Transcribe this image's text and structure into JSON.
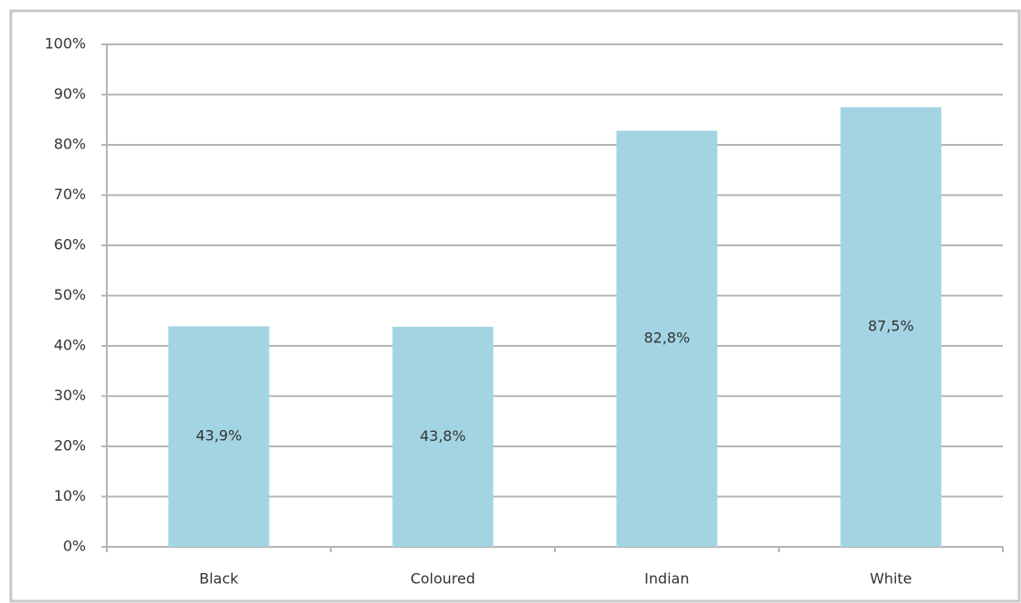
{
  "chart_data": {
    "type": "bar",
    "categories": [
      "Black",
      "Coloured",
      "Indian",
      "White"
    ],
    "values": [
      43.9,
      43.8,
      82.8,
      87.5
    ],
    "value_labels": [
      "43,9%",
      "43,8%",
      "82,8%",
      "87,5%"
    ],
    "color": "#a3d4e3",
    "ylim": [
      0,
      100
    ],
    "yticks": [
      {
        "value": 0,
        "label": "0%"
      },
      {
        "value": 10,
        "label": "10%"
      },
      {
        "value": 20,
        "label": "20%"
      },
      {
        "value": 30,
        "label": "30%"
      },
      {
        "value": 40,
        "label": "40%"
      },
      {
        "value": 50,
        "label": "50%"
      },
      {
        "value": 60,
        "label": "60%"
      },
      {
        "value": 70,
        "label": "70%"
      },
      {
        "value": 80,
        "label": "80%"
      },
      {
        "value": 90,
        "label": "90%"
      },
      {
        "value": 100,
        "label": "100%"
      }
    ],
    "grid": true
  }
}
